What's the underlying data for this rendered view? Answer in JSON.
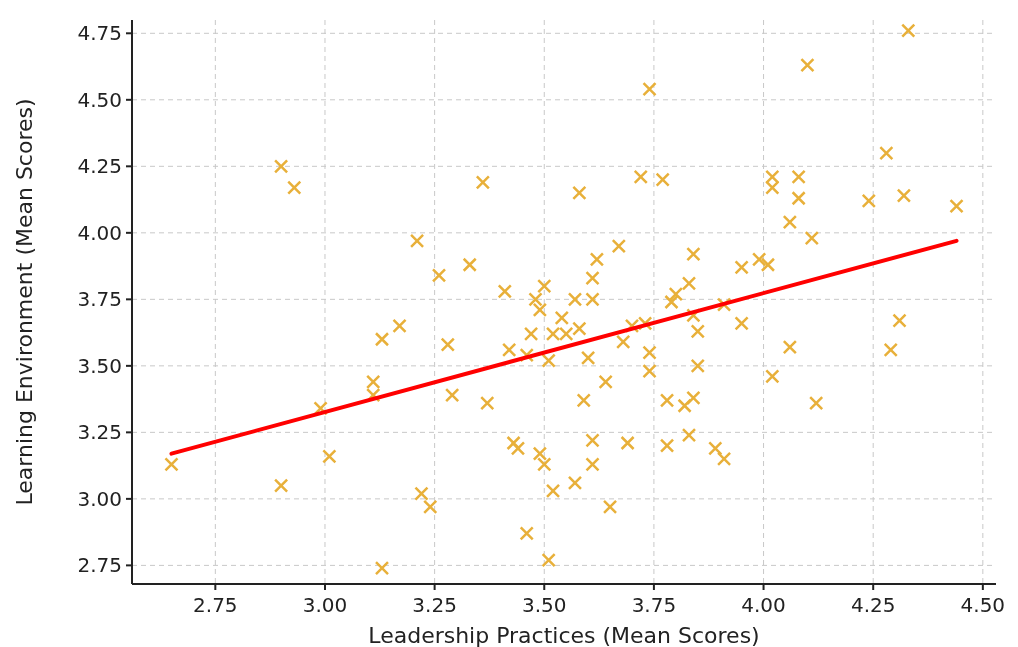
{
  "chart_data": {
    "type": "scatter",
    "xlabel": "Leadership Practices (Mean Scores)",
    "ylabel": "Learning Environment (Mean Scores)",
    "xlim": [
      2.56,
      4.53
    ],
    "ylim": [
      2.68,
      4.8
    ],
    "xticks": [
      {
        "value": 2.75,
        "label": "2.75"
      },
      {
        "value": 3,
        "label": "3.00"
      },
      {
        "value": 3.25,
        "label": "3.25"
      },
      {
        "value": 3.5,
        "label": "3.50"
      },
      {
        "value": 3.75,
        "label": "3.75"
      },
      {
        "value": 4,
        "label": "4.00"
      },
      {
        "value": 4.25,
        "label": "4.25"
      },
      {
        "value": 4.5,
        "label": "4.50"
      }
    ],
    "yticks": [
      {
        "value": 2.75,
        "label": "2.75"
      },
      {
        "value": 3,
        "label": "3.00"
      },
      {
        "value": 3.25,
        "label": "3.25"
      },
      {
        "value": 3.5,
        "label": "3.50"
      },
      {
        "value": 3.75,
        "label": "3.75"
      },
      {
        "value": 4,
        "label": "4.00"
      },
      {
        "value": 4.25,
        "label": "4.25"
      },
      {
        "value": 4.5,
        "label": "4.50"
      },
      {
        "value": 4.75,
        "label": "4.75"
      }
    ],
    "grid": true,
    "marker": "cross",
    "series": [
      {
        "color": "#e8b03a",
        "x": [
          2.65,
          2.9,
          2.93,
          2.9,
          2.99,
          3.01,
          3.13,
          3.11,
          3.11,
          3.13,
          3.17,
          3.21,
          3.22,
          3.24,
          3.26,
          3.28,
          3.29,
          3.33,
          3.36,
          3.37,
          3.41,
          3.42,
          3.43,
          3.44,
          3.46,
          3.46,
          3.47,
          3.48,
          3.49,
          3.49,
          3.5,
          3.5,
          3.51,
          3.51,
          3.52,
          3.52,
          3.54,
          3.55,
          3.57,
          3.58,
          3.57,
          3.58,
          3.59,
          3.6,
          3.61,
          3.61,
          3.61,
          3.61,
          3.62,
          3.64,
          3.65,
          3.67,
          3.68,
          3.69,
          3.7,
          3.72,
          3.73,
          3.74,
          3.74,
          3.74,
          3.77,
          3.78,
          3.78,
          3.79,
          3.8,
          3.82,
          3.83,
          3.83,
          3.84,
          3.84,
          3.85,
          3.84,
          3.85,
          3.89,
          3.91,
          3.91,
          3.95,
          3.95,
          3.99,
          4.01,
          4.02,
          4.02,
          4.02,
          4.06,
          4.06,
          4.08,
          4.08,
          4.1,
          4.11,
          4.12,
          4.24,
          4.28,
          4.29,
          4.31,
          4.32,
          4.33,
          4.44
        ],
        "values": [
          3.13,
          4.25,
          4.17,
          3.05,
          3.34,
          3.16,
          2.74,
          3.39,
          3.44,
          3.6,
          3.65,
          3.97,
          3.02,
          2.97,
          3.84,
          3.58,
          3.39,
          3.88,
          4.19,
          3.36,
          3.78,
          3.56,
          3.21,
          3.19,
          3.54,
          2.87,
          3.62,
          3.75,
          3.17,
          3.71,
          3.8,
          3.13,
          2.77,
          3.52,
          3.03,
          3.62,
          3.68,
          3.62,
          3.06,
          4.15,
          3.75,
          3.64,
          3.37,
          3.53,
          3.75,
          3.13,
          3.22,
          3.83,
          3.9,
          3.44,
          2.97,
          3.95,
          3.59,
          3.21,
          3.65,
          4.21,
          3.66,
          3.55,
          3.48,
          4.54,
          4.2,
          3.2,
          3.37,
          3.74,
          3.77,
          3.35,
          3.24,
          3.81,
          3.69,
          3.92,
          3.63,
          3.38,
          3.5,
          3.19,
          3.15,
          3.73,
          3.87,
          3.66,
          3.9,
          3.88,
          3.46,
          4.21,
          4.17,
          4.04,
          3.57,
          4.21,
          4.13,
          4.63,
          3.98,
          3.36,
          4.12,
          4.3,
          3.56,
          3.67,
          4.14,
          4.76,
          4.1
        ]
      },
      {
        "type": "line",
        "marker": "none",
        "color": "#ff0000",
        "x": [
          2.65,
          4.44
        ],
        "values": [
          3.17,
          3.97
        ]
      }
    ]
  }
}
